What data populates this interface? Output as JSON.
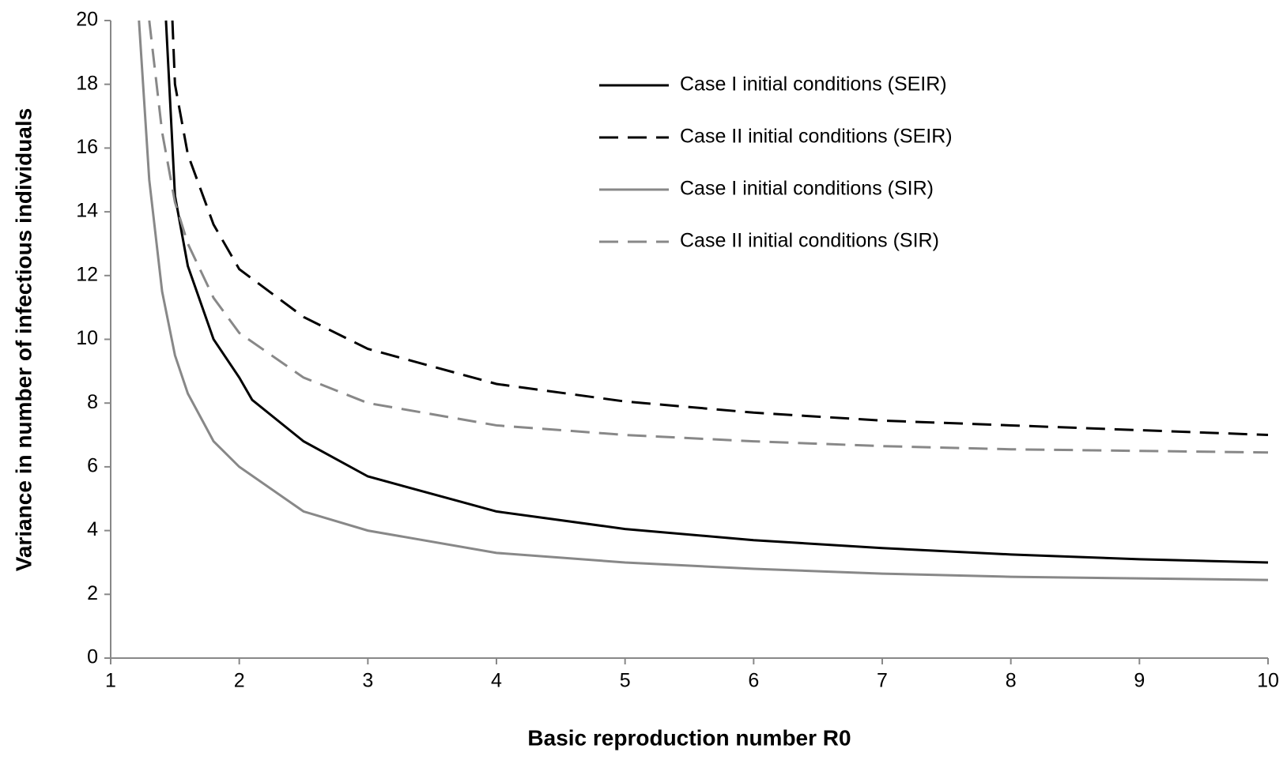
{
  "chart_data": {
    "type": "line",
    "x_label": "Basic reproduction number R0",
    "y_label": "Variance in number of infectious individuals",
    "xlim": [
      1,
      10
    ],
    "xticks": [
      1,
      2,
      3,
      4,
      5,
      6,
      7,
      8,
      9,
      10
    ],
    "ylim": [
      0,
      20
    ],
    "yticks": [
      0,
      2,
      4,
      6,
      8,
      10,
      12,
      14,
      16,
      18,
      20
    ],
    "legend": "upper-right",
    "series": [
      {
        "name": "Case I initial conditions (SEIR)",
        "color": "#000000",
        "style": "solid",
        "x": [
          1.43,
          1.5,
          1.6,
          1.8,
          2,
          2.1,
          2.5,
          3,
          4,
          5,
          6,
          7,
          8,
          9,
          10
        ],
        "values": [
          20,
          14.5,
          12.3,
          10,
          8.8,
          8.1,
          6.8,
          5.7,
          4.6,
          4.05,
          3.7,
          3.45,
          3.25,
          3.1,
          3.0
        ]
      },
      {
        "name": "Case II initial conditions (SEIR)",
        "color": "#000000",
        "style": "dashed",
        "x": [
          1.48,
          1.5,
          1.6,
          1.8,
          2,
          2.5,
          3,
          4,
          5,
          6,
          7,
          8,
          9,
          10
        ],
        "values": [
          20,
          18,
          15.8,
          13.6,
          12.2,
          10.7,
          9.7,
          8.6,
          8.05,
          7.7,
          7.45,
          7.3,
          7.15,
          7.0
        ]
      },
      {
        "name": "Case I initial conditions (SIR)",
        "color": "#888888",
        "style": "solid",
        "x": [
          1.22,
          1.3,
          1.4,
          1.5,
          1.6,
          1.8,
          2,
          2.5,
          3,
          4,
          5,
          6,
          7,
          8,
          9,
          10
        ],
        "values": [
          20,
          15,
          11.5,
          9.5,
          8.3,
          6.8,
          6.0,
          4.6,
          4.0,
          3.3,
          3.0,
          2.8,
          2.65,
          2.55,
          2.5,
          2.45
        ]
      },
      {
        "name": "Case II initial conditions (SIR)",
        "color": "#888888",
        "style": "dashed",
        "x": [
          1.3,
          1.4,
          1.5,
          1.6,
          1.8,
          2,
          2.5,
          3,
          4,
          5,
          6,
          7,
          8,
          9,
          10
        ],
        "values": [
          20,
          16.5,
          14.3,
          13,
          11.3,
          10.2,
          8.8,
          8.0,
          7.3,
          7.0,
          6.8,
          6.65,
          6.55,
          6.5,
          6.45
        ]
      }
    ]
  }
}
